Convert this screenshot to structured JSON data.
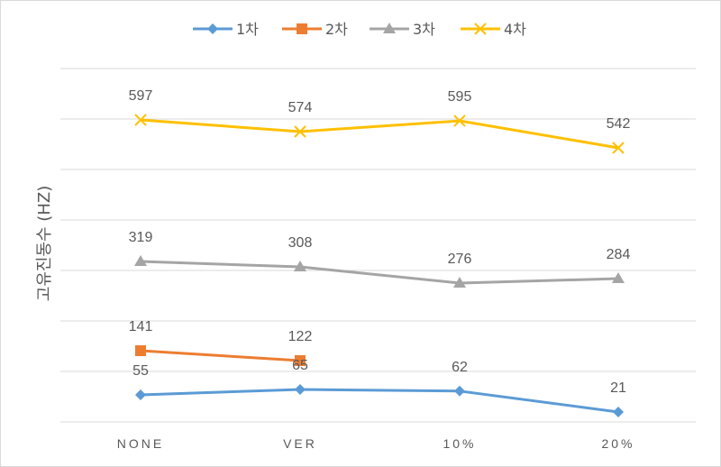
{
  "chart_data": {
    "type": "line",
    "title": "",
    "xlabel": "",
    "ylabel": "고유진동수 (HZ)",
    "categories": [
      "NONE",
      "VER",
      "10%",
      "20%"
    ],
    "ylim": [
      0,
      650
    ],
    "grid": true,
    "legend_position": "top",
    "series": [
      {
        "name": "1차",
        "values": [
          55,
          65,
          62,
          21
        ],
        "color": "#5B9BD5",
        "marker": "diamond"
      },
      {
        "name": "2차",
        "values": [
          141,
          122,
          null,
          null
        ],
        "color": "#ED7D31",
        "marker": "square"
      },
      {
        "name": "3차",
        "values": [
          319,
          308,
          276,
          284
        ],
        "color": "#A5A5A5",
        "marker": "triangle"
      },
      {
        "name": "4차",
        "values": [
          597,
          574,
          595,
          542
        ],
        "color": "#FFC000",
        "marker": "x"
      }
    ]
  }
}
